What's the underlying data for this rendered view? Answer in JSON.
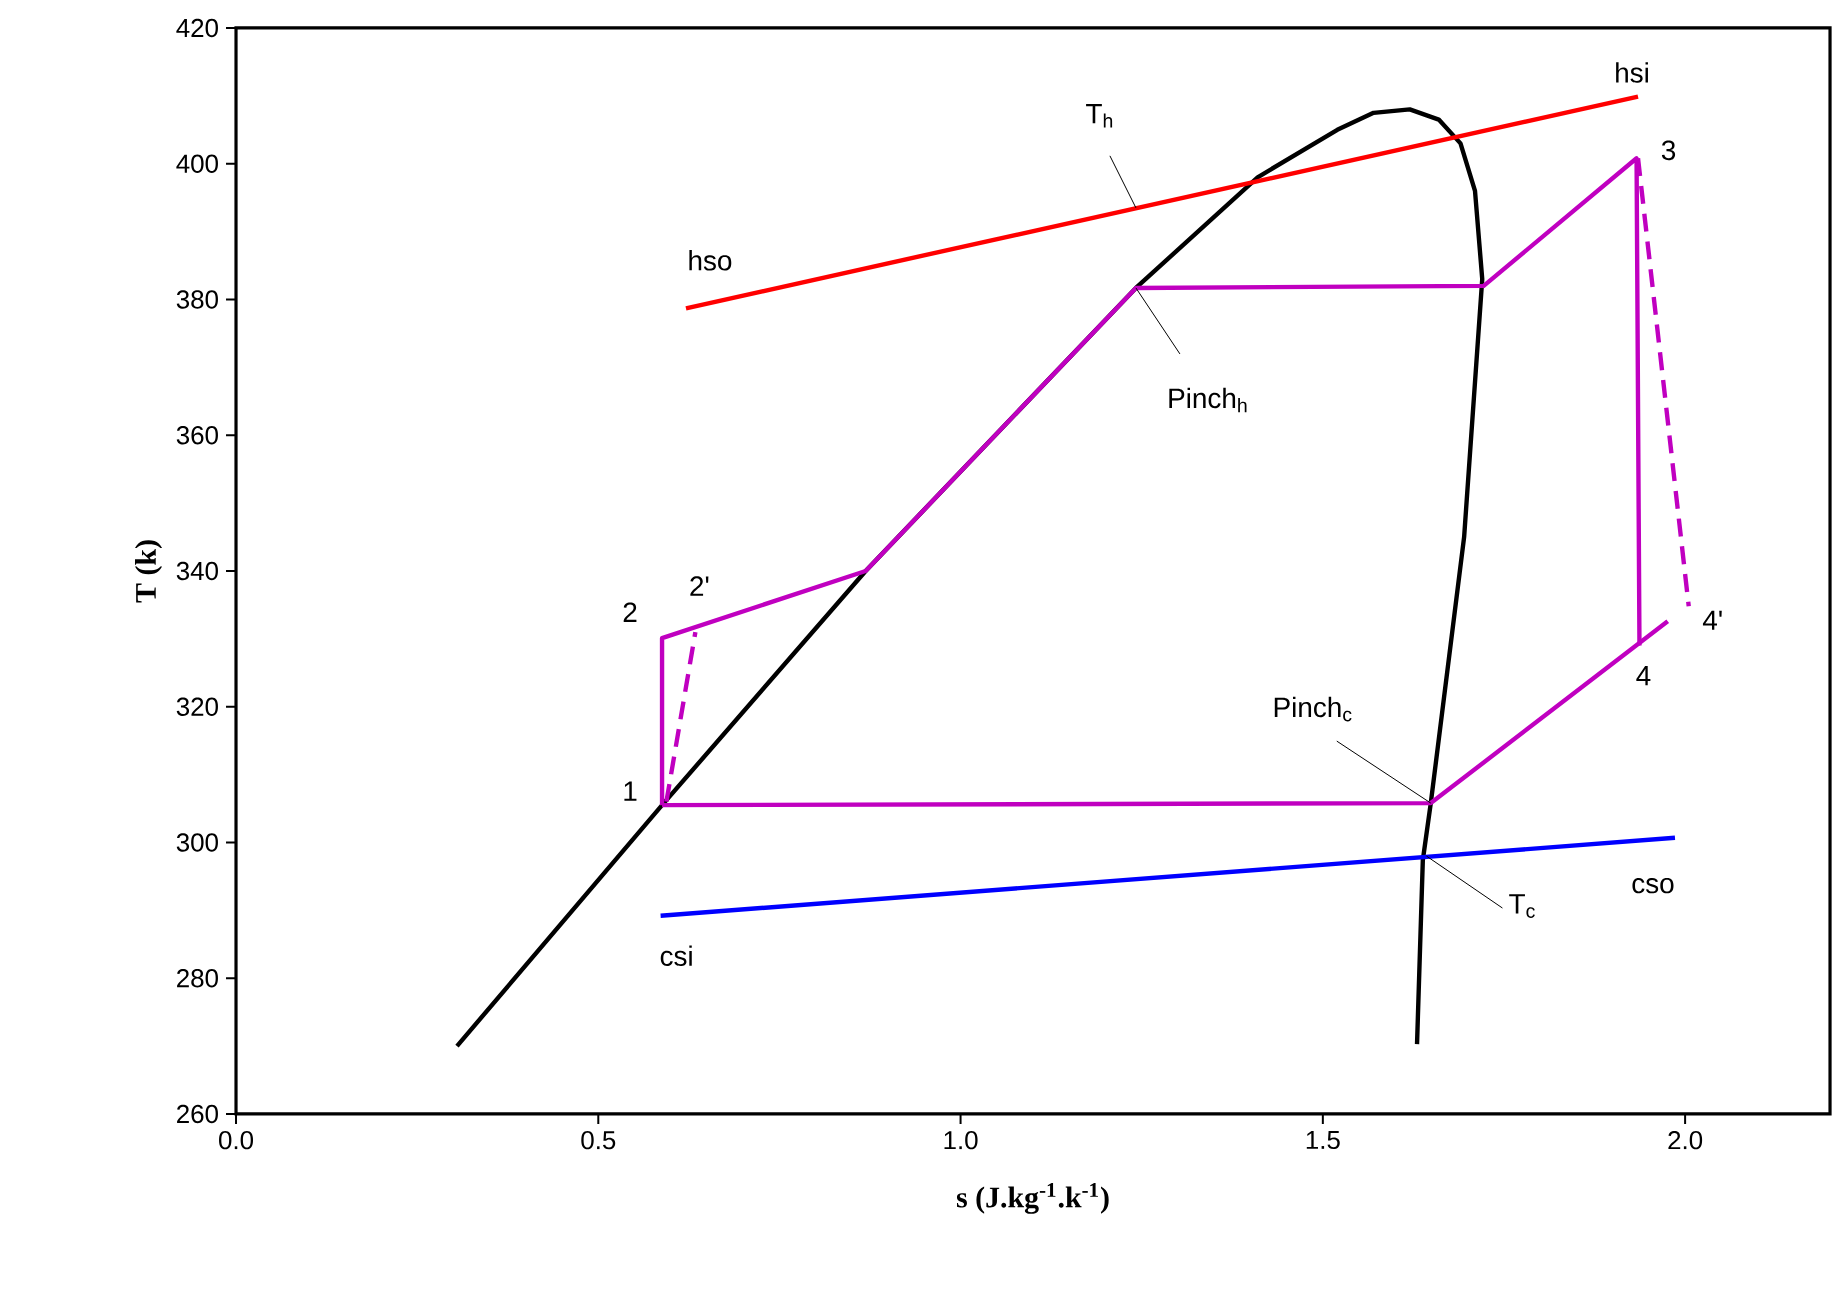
{
  "chart_data": {
    "type": "line",
    "xlabel": "s (J.kg$^{-1}$.k$^{-1}$)",
    "ylabel": "T (k)",
    "xlim": [
      0,
      2.2
    ],
    "xticks": [
      {
        "value": 0,
        "label": "0.0"
      },
      0.5,
      {
        "value": 1,
        "label": "1.0"
      },
      1.5,
      {
        "value": 2,
        "label": "2.0"
      }
    ],
    "ylim": [
      260,
      420
    ],
    "yticks": [
      260,
      280,
      300,
      320,
      340,
      360,
      380,
      400,
      420
    ],
    "grid": false,
    "marker": "none",
    "series": [
      {
        "color": "#000000",
        "line_style": "solid",
        "x": [
          0.305,
          0.588,
          0.869,
          1.242,
          1.41,
          1.52,
          1.57,
          1.62,
          1.66,
          1.69,
          1.71,
          1.72,
          1.695,
          1.649,
          1.638,
          1.63
        ],
        "values": [
          270,
          305.5,
          340,
          381.7,
          398,
          405,
          407.5,
          408,
          406.5,
          403,
          396,
          383,
          345,
          305.8,
          297.4,
          270.3
        ]
      },
      {
        "color": "#c000c0",
        "line_style": "solid",
        "x": [
          0.588,
          0.588,
          0.869,
          1.242,
          1.722,
          1.933,
          1.937
        ],
        "values": [
          305.5,
          330.1,
          340,
          381.7,
          382,
          400.8,
          329
        ]
      },
      {
        "color": "#c000c0",
        "line_style": "solid",
        "x": [
          0.588,
          1.649,
          1.976
        ],
        "values": [
          305.5,
          305.8,
          332.6
        ]
      },
      {
        "color": "#c000c0",
        "line_style": "dashed",
        "x": [
          0.594,
          0.634
        ],
        "values": [
          306,
          331
        ]
      },
      {
        "color": "#c000c0",
        "line_style": "dashed",
        "x": [
          1.935,
          2.005
        ],
        "values": [
          400.8,
          334.8
        ]
      },
      {
        "color": "#ff0000",
        "line_style": "solid",
        "x": [
          0.621,
          1.935
        ],
        "values": [
          378.7,
          409.9
        ]
      },
      {
        "color": "#0000ff",
        "line_style": "solid",
        "x": [
          0.586,
          1.986
        ],
        "values": [
          289.2,
          300.7
        ]
      }
    ],
    "annotations": [
      {
        "text": "1",
        "x": 0.588,
        "y": 305.5
      },
      {
        "text": "2",
        "x": 0.588,
        "y": 330.1
      },
      {
        "text": "2'",
        "x": 0.634,
        "y": 331
      },
      {
        "text": "3",
        "x": 1.933,
        "y": 400.8
      },
      {
        "text": "4",
        "x": 1.937,
        "y": 329
      },
      {
        "text": "4'",
        "x": 2.005,
        "y": 334.8
      },
      {
        "text": "hso",
        "x": 0.621,
        "y": 378.7
      },
      {
        "text": "hsi",
        "x": 1.935,
        "y": 409.9
      },
      {
        "text": "csi",
        "x": 0.586,
        "y": 289.2
      },
      {
        "text": "cso",
        "x": 1.986,
        "y": 300.7
      },
      {
        "text": "T$_{h}$",
        "x": 1.242,
        "y": 393.5
      },
      {
        "text": "Pinch$_{h}$",
        "x": 1.242,
        "y": 381.7
      },
      {
        "text": "Pinch$_{c}$",
        "x": 1.649,
        "y": 305.8
      },
      {
        "text": "T$_{c}$",
        "x": 1.643,
        "y": 298
      }
    ]
  }
}
